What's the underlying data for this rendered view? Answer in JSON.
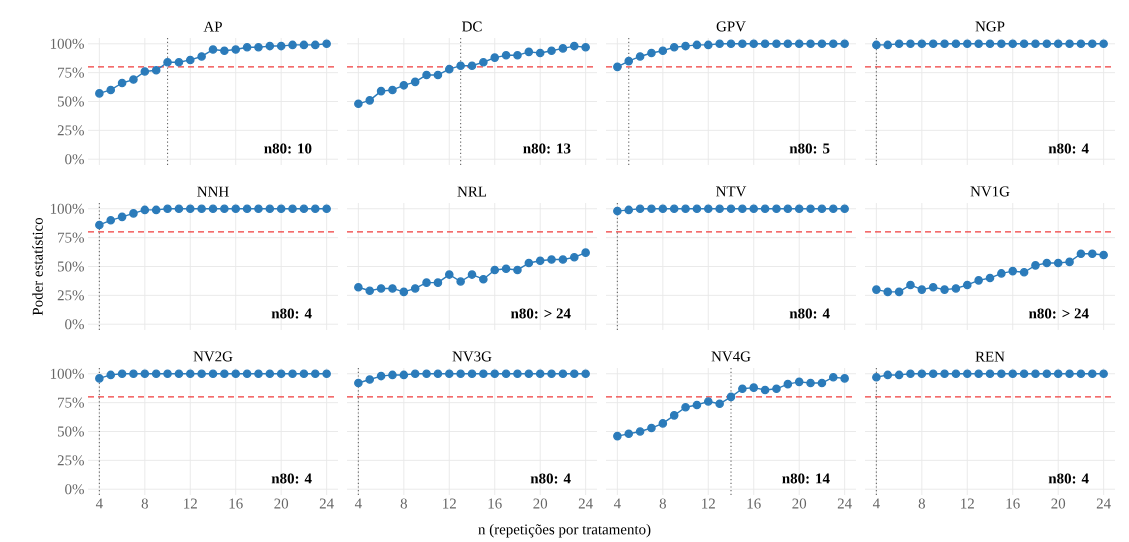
{
  "chart_data": [
    {
      "type": "line",
      "title": "AP",
      "x": [
        4,
        5,
        6,
        7,
        8,
        9,
        10,
        11,
        12,
        13,
        14,
        15,
        16,
        17,
        18,
        19,
        20,
        21,
        22,
        23,
        24
      ],
      "values": [
        57,
        60,
        66,
        69,
        76,
        77,
        84,
        84,
        86,
        89,
        95,
        94,
        95,
        97,
        97,
        98,
        98,
        99,
        99,
        99,
        100
      ],
      "color": "#2b7bba",
      "marker": "circle",
      "grid": true,
      "xlim": [
        3,
        25
      ],
      "ylim": [
        -5,
        105
      ],
      "xticks": [
        4,
        8,
        12,
        16,
        20,
        24
      ],
      "yticks": [
        {
          "value": 0,
          "label": "0%"
        },
        {
          "value": 25,
          "label": "25%"
        },
        {
          "value": 50,
          "label": "50%"
        },
        {
          "value": 75,
          "label": "75%"
        },
        {
          "value": 100,
          "label": "100%"
        }
      ],
      "tick_labels": "y",
      "ref_lines": [
        {
          "axis": "y",
          "value": 80,
          "color": "#f03c3c",
          "line_style": "dashed"
        },
        {
          "axis": "x",
          "value": 10,
          "color": "#666666",
          "line_style": "dotted"
        }
      ],
      "annotations": [
        "n80: 10"
      ]
    },
    {
      "type": "line",
      "title": "DC",
      "x": [
        4,
        5,
        6,
        7,
        8,
        9,
        10,
        11,
        12,
        13,
        14,
        15,
        16,
        17,
        18,
        19,
        20,
        21,
        22,
        23,
        24
      ],
      "values": [
        48,
        51,
        59,
        60,
        64,
        67,
        73,
        73,
        78,
        81,
        81,
        84,
        88,
        90,
        90,
        93,
        92,
        94,
        96,
        98,
        97
      ],
      "color": "#2b7bba",
      "marker": "circle",
      "grid": true,
      "xlim": [
        3,
        25
      ],
      "ylim": [
        -5,
        105
      ],
      "xticks": [
        4,
        8,
        12,
        16,
        20,
        24
      ],
      "yticks": [
        {
          "value": 0,
          "label": null
        },
        {
          "value": 25,
          "label": null
        },
        {
          "value": 50,
          "label": null
        },
        {
          "value": 75,
          "label": null
        },
        {
          "value": 100,
          "label": null
        }
      ],
      "tick_labels": false,
      "ref_lines": [
        {
          "axis": "y",
          "value": 80,
          "color": "#f03c3c",
          "line_style": "dashed"
        },
        {
          "axis": "x",
          "value": 13,
          "color": "#666666",
          "line_style": "dotted"
        }
      ],
      "annotations": [
        "n80: 13"
      ]
    },
    {
      "type": "line",
      "title": "GPV",
      "x": [
        4,
        5,
        6,
        7,
        8,
        9,
        10,
        11,
        12,
        13,
        14,
        15,
        16,
        17,
        18,
        19,
        20,
        21,
        22,
        23,
        24
      ],
      "values": [
        80,
        85,
        89,
        92,
        94,
        97,
        98,
        99,
        99,
        100,
        100,
        100,
        100,
        100,
        100,
        100,
        100,
        100,
        100,
        100,
        100
      ],
      "color": "#2b7bba",
      "marker": "circle",
      "grid": true,
      "xlim": [
        3,
        25
      ],
      "ylim": [
        -5,
        105
      ],
      "xticks": [
        4,
        8,
        12,
        16,
        20,
        24
      ],
      "yticks": [
        {
          "value": 0,
          "label": null
        },
        {
          "value": 25,
          "label": null
        },
        {
          "value": 50,
          "label": null
        },
        {
          "value": 75,
          "label": null
        },
        {
          "value": 100,
          "label": null
        }
      ],
      "tick_labels": false,
      "ref_lines": [
        {
          "axis": "y",
          "value": 80,
          "color": "#f03c3c",
          "line_style": "dashed"
        },
        {
          "axis": "x",
          "value": 5,
          "color": "#666666",
          "line_style": "dotted"
        }
      ],
      "annotations": [
        "n80: 5"
      ]
    },
    {
      "type": "line",
      "title": "NGP",
      "x": [
        4,
        5,
        6,
        7,
        8,
        9,
        10,
        11,
        12,
        13,
        14,
        15,
        16,
        17,
        18,
        19,
        20,
        21,
        22,
        23,
        24
      ],
      "values": [
        99,
        99,
        100,
        100,
        100,
        100,
        100,
        100,
        100,
        100,
        100,
        100,
        100,
        100,
        100,
        100,
        100,
        100,
        100,
        100,
        100
      ],
      "color": "#2b7bba",
      "marker": "circle",
      "grid": true,
      "xlim": [
        3,
        25
      ],
      "ylim": [
        -5,
        105
      ],
      "xticks": [
        4,
        8,
        12,
        16,
        20,
        24
      ],
      "yticks": [
        {
          "value": 0,
          "label": null
        },
        {
          "value": 25,
          "label": null
        },
        {
          "value": 50,
          "label": null
        },
        {
          "value": 75,
          "label": null
        },
        {
          "value": 100,
          "label": null
        }
      ],
      "tick_labels": false,
      "ref_lines": [
        {
          "axis": "y",
          "value": 80,
          "color": "#f03c3c",
          "line_style": "dashed"
        },
        {
          "axis": "x",
          "value": 4,
          "color": "#666666",
          "line_style": "dotted"
        }
      ],
      "annotations": [
        "n80: 4"
      ]
    },
    {
      "type": "line",
      "title": "NNH",
      "ylabel": "Poder estatístico",
      "x": [
        4,
        5,
        6,
        7,
        8,
        9,
        10,
        11,
        12,
        13,
        14,
        15,
        16,
        17,
        18,
        19,
        20,
        21,
        22,
        23,
        24
      ],
      "values": [
        86,
        90,
        93,
        96,
        99,
        99,
        100,
        100,
        100,
        100,
        100,
        100,
        100,
        100,
        100,
        100,
        100,
        100,
        100,
        100,
        100
      ],
      "color": "#2b7bba",
      "marker": "circle",
      "grid": true,
      "xlim": [
        3,
        25
      ],
      "ylim": [
        -5,
        105
      ],
      "xticks": [
        4,
        8,
        12,
        16,
        20,
        24
      ],
      "yticks": [
        {
          "value": 0,
          "label": "0%"
        },
        {
          "value": 25,
          "label": "25%"
        },
        {
          "value": 50,
          "label": "50%"
        },
        {
          "value": 75,
          "label": "75%"
        },
        {
          "value": 100,
          "label": "100%"
        }
      ],
      "tick_labels": "y",
      "ref_lines": [
        {
          "axis": "y",
          "value": 80,
          "color": "#f03c3c",
          "line_style": "dashed"
        },
        {
          "axis": "x",
          "value": 4,
          "color": "#666666",
          "line_style": "dotted"
        }
      ],
      "annotations": [
        "n80: 4"
      ]
    },
    {
      "type": "line",
      "title": "NRL",
      "x": [
        4,
        5,
        6,
        7,
        8,
        9,
        10,
        11,
        12,
        13,
        14,
        15,
        16,
        17,
        18,
        19,
        20,
        21,
        22,
        23,
        24
      ],
      "values": [
        32,
        29,
        31,
        31,
        28,
        31,
        36,
        36,
        43,
        37,
        43,
        39,
        47,
        48,
        47,
        53,
        55,
        56,
        56,
        58,
        62
      ],
      "color": "#2b7bba",
      "marker": "circle",
      "grid": true,
      "xlim": [
        3,
        25
      ],
      "ylim": [
        -5,
        105
      ],
      "xticks": [
        4,
        8,
        12,
        16,
        20,
        24
      ],
      "yticks": [
        {
          "value": 0,
          "label": null
        },
        {
          "value": 25,
          "label": null
        },
        {
          "value": 50,
          "label": null
        },
        {
          "value": 75,
          "label": null
        },
        {
          "value": 100,
          "label": null
        }
      ],
      "tick_labels": false,
      "ref_lines": [
        {
          "axis": "y",
          "value": 80,
          "color": "#f03c3c",
          "line_style": "dashed"
        }
      ],
      "annotations": [
        "n80: > 24"
      ]
    },
    {
      "type": "line",
      "title": "NTV",
      "x": [
        4,
        5,
        6,
        7,
        8,
        9,
        10,
        11,
        12,
        13,
        14,
        15,
        16,
        17,
        18,
        19,
        20,
        21,
        22,
        23,
        24
      ],
      "values": [
        98,
        99,
        100,
        100,
        100,
        100,
        100,
        100,
        100,
        100,
        100,
        100,
        100,
        100,
        100,
        100,
        100,
        100,
        100,
        100,
        100
      ],
      "color": "#2b7bba",
      "marker": "circle",
      "grid": true,
      "xlim": [
        3,
        25
      ],
      "ylim": [
        -5,
        105
      ],
      "xticks": [
        4,
        8,
        12,
        16,
        20,
        24
      ],
      "yticks": [
        {
          "value": 0,
          "label": null
        },
        {
          "value": 25,
          "label": null
        },
        {
          "value": 50,
          "label": null
        },
        {
          "value": 75,
          "label": null
        },
        {
          "value": 100,
          "label": null
        }
      ],
      "tick_labels": false,
      "ref_lines": [
        {
          "axis": "y",
          "value": 80,
          "color": "#f03c3c",
          "line_style": "dashed"
        },
        {
          "axis": "x",
          "value": 4,
          "color": "#666666",
          "line_style": "dotted"
        }
      ],
      "annotations": [
        "n80: 4"
      ]
    },
    {
      "type": "line",
      "title": "NV1G",
      "x": [
        4,
        5,
        6,
        7,
        8,
        9,
        10,
        11,
        12,
        13,
        14,
        15,
        16,
        17,
        18,
        19,
        20,
        21,
        22,
        23,
        24
      ],
      "values": [
        30,
        28,
        28,
        34,
        30,
        32,
        30,
        31,
        34,
        38,
        40,
        44,
        46,
        45,
        51,
        53,
        53,
        54,
        61,
        61,
        60
      ],
      "color": "#2b7bba",
      "marker": "circle",
      "grid": true,
      "xlim": [
        3,
        25
      ],
      "ylim": [
        -5,
        105
      ],
      "xticks": [
        4,
        8,
        12,
        16,
        20,
        24
      ],
      "yticks": [
        {
          "value": 0,
          "label": null
        },
        {
          "value": 25,
          "label": null
        },
        {
          "value": 50,
          "label": null
        },
        {
          "value": 75,
          "label": null
        },
        {
          "value": 100,
          "label": null
        }
      ],
      "tick_labels": false,
      "ref_lines": [
        {
          "axis": "y",
          "value": 80,
          "color": "#f03c3c",
          "line_style": "dashed"
        }
      ],
      "annotations": [
        "n80: > 24"
      ]
    },
    {
      "type": "line",
      "title": "NV2G",
      "x": [
        4,
        5,
        6,
        7,
        8,
        9,
        10,
        11,
        12,
        13,
        14,
        15,
        16,
        17,
        18,
        19,
        20,
        21,
        22,
        23,
        24
      ],
      "values": [
        96,
        99,
        100,
        100,
        100,
        100,
        100,
        100,
        100,
        100,
        100,
        100,
        100,
        100,
        100,
        100,
        100,
        100,
        100,
        100,
        100
      ],
      "color": "#2b7bba",
      "marker": "circle",
      "grid": true,
      "xlim": [
        3,
        25
      ],
      "ylim": [
        -5,
        105
      ],
      "xticks": [
        4,
        8,
        12,
        16,
        20,
        24
      ],
      "yticks": [
        {
          "value": 0,
          "label": "0%"
        },
        {
          "value": 25,
          "label": "25%"
        },
        {
          "value": 50,
          "label": "50%"
        },
        {
          "value": 75,
          "label": "75%"
        },
        {
          "value": 100,
          "label": "100%"
        }
      ],
      "ref_lines": [
        {
          "axis": "y",
          "value": 80,
          "color": "#f03c3c",
          "line_style": "dashed"
        },
        {
          "axis": "x",
          "value": 4,
          "color": "#666666",
          "line_style": "dotted"
        }
      ],
      "annotations": [
        "n80: 4"
      ]
    },
    {
      "type": "line",
      "title": "NV3G",
      "xlabel": "n (repetições por tratamento)",
      "x": [
        4,
        5,
        6,
        7,
        8,
        9,
        10,
        11,
        12,
        13,
        14,
        15,
        16,
        17,
        18,
        19,
        20,
        21,
        22,
        23,
        24
      ],
      "values": [
        92,
        95,
        98,
        99,
        99,
        100,
        100,
        100,
        100,
        100,
        100,
        100,
        100,
        100,
        100,
        100,
        100,
        100,
        100,
        100,
        100
      ],
      "color": "#2b7bba",
      "marker": "circle",
      "grid": true,
      "xlim": [
        3,
        25
      ],
      "ylim": [
        -5,
        105
      ],
      "xticks": [
        4,
        8,
        12,
        16,
        20,
        24
      ],
      "yticks": [
        {
          "value": 0,
          "label": null
        },
        {
          "value": 25,
          "label": null
        },
        {
          "value": 50,
          "label": null
        },
        {
          "value": 75,
          "label": null
        },
        {
          "value": 100,
          "label": null
        }
      ],
      "tick_labels": "x",
      "ref_lines": [
        {
          "axis": "y",
          "value": 80,
          "color": "#f03c3c",
          "line_style": "dashed"
        },
        {
          "axis": "x",
          "value": 4,
          "color": "#666666",
          "line_style": "dotted"
        }
      ],
      "annotations": [
        "n80: 4"
      ]
    },
    {
      "type": "line",
      "title": "NV4G",
      "x": [
        4,
        5,
        6,
        7,
        8,
        9,
        10,
        11,
        12,
        13,
        14,
        15,
        16,
        17,
        18,
        19,
        20,
        21,
        22,
        23,
        24
      ],
      "values": [
        46,
        48,
        50,
        53,
        57,
        64,
        71,
        73,
        76,
        74,
        80,
        87,
        88,
        86,
        87,
        91,
        93,
        92,
        92,
        97,
        96
      ],
      "color": "#2b7bba",
      "marker": "circle",
      "grid": true,
      "xlim": [
        3,
        25
      ],
      "ylim": [
        -5,
        105
      ],
      "xticks": [
        4,
        8,
        12,
        16,
        20,
        24
      ],
      "yticks": [
        {
          "value": 0,
          "label": null
        },
        {
          "value": 25,
          "label": null
        },
        {
          "value": 50,
          "label": null
        },
        {
          "value": 75,
          "label": null
        },
        {
          "value": 100,
          "label": null
        }
      ],
      "tick_labels": "x",
      "ref_lines": [
        {
          "axis": "y",
          "value": 80,
          "color": "#f03c3c",
          "line_style": "dashed"
        },
        {
          "axis": "x",
          "value": 14,
          "color": "#666666",
          "line_style": "dotted"
        }
      ],
      "annotations": [
        "n80: 14"
      ]
    },
    {
      "type": "line",
      "title": "REN",
      "x": [
        4,
        5,
        6,
        7,
        8,
        9,
        10,
        11,
        12,
        13,
        14,
        15,
        16,
        17,
        18,
        19,
        20,
        21,
        22,
        23,
        24
      ],
      "values": [
        97,
        99,
        99,
        100,
        100,
        100,
        100,
        100,
        100,
        100,
        100,
        100,
        100,
        100,
        100,
        100,
        100,
        100,
        100,
        100,
        100
      ],
      "color": "#2b7bba",
      "marker": "circle",
      "grid": true,
      "xlim": [
        3,
        25
      ],
      "ylim": [
        -5,
        105
      ],
      "xticks": [
        4,
        8,
        12,
        16,
        20,
        24
      ],
      "yticks": [
        {
          "value": 0,
          "label": null
        },
        {
          "value": 25,
          "label": null
        },
        {
          "value": 50,
          "label": null
        },
        {
          "value": 75,
          "label": null
        },
        {
          "value": 100,
          "label": null
        }
      ],
      "tick_labels": "x",
      "ref_lines": [
        {
          "axis": "y",
          "value": 80,
          "color": "#f03c3c",
          "line_style": "dashed"
        },
        {
          "axis": "x",
          "value": 4,
          "color": "#666666",
          "line_style": "dotted"
        }
      ],
      "annotations": [
        "n80: 4"
      ]
    }
  ]
}
